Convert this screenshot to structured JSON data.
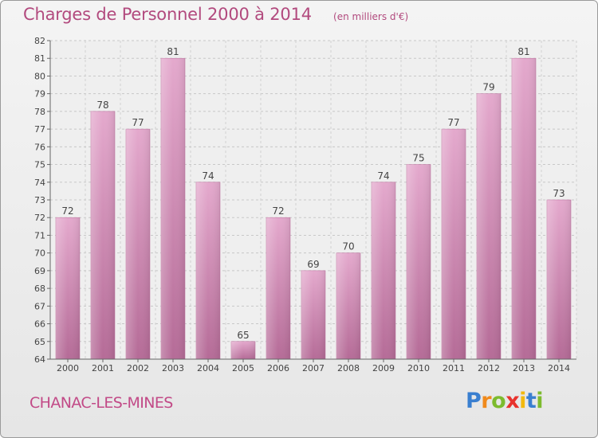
{
  "title": "Charges de Personnel 2000 à 2014",
  "subtitle": "(en milliers d'€)",
  "commune": "CHANAC-LES-MINES",
  "logo": {
    "letters": [
      {
        "char": "P",
        "color": "#3a7fd0"
      },
      {
        "char": "r",
        "color": "#f08a1c"
      },
      {
        "char": "o",
        "color": "#7dbb2e"
      },
      {
        "char": "x",
        "color": "#e8322d"
      },
      {
        "char": "i",
        "color": "#f2b90f"
      },
      {
        "char": "t",
        "color": "#3a7fd0"
      },
      {
        "char": "i",
        "color": "#7dbb2e"
      }
    ]
  },
  "chart_data": {
    "type": "bar",
    "title": "Charges de Personnel 2000 à 2014",
    "subtitle": "(en milliers d'€)",
    "categories": [
      "2000",
      "2001",
      "2002",
      "2003",
      "2004",
      "2005",
      "2006",
      "2007",
      "2008",
      "2009",
      "2010",
      "2011",
      "2012",
      "2013",
      "2014"
    ],
    "values": [
      72,
      78,
      77,
      81,
      74,
      65,
      72,
      69,
      70,
      74,
      75,
      77,
      79,
      81,
      73
    ],
    "ylim": [
      64,
      82
    ],
    "yticks": [
      64,
      65,
      66,
      67,
      68,
      69,
      70,
      71,
      72,
      73,
      74,
      75,
      76,
      77,
      78,
      79,
      80,
      81,
      82
    ],
    "grid": true,
    "xlabel": "",
    "ylabel": "",
    "bar_color": "#d98ab6"
  }
}
